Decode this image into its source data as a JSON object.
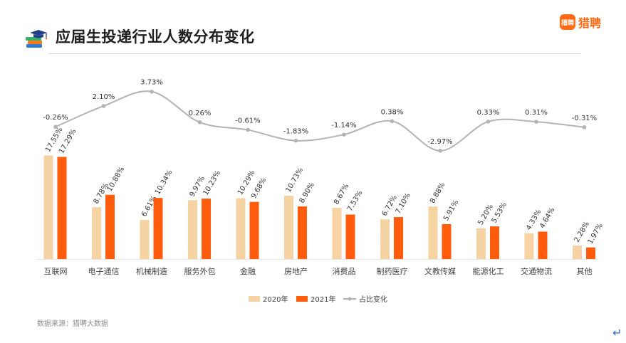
{
  "header": {
    "title": "应届生投递行业人数分布变化",
    "logo_mark": "猎聘",
    "logo_text": "猎聘",
    "icon": "graduation-cap-books-icon"
  },
  "footer": {
    "source": "数据来源：猎聘大数据",
    "return_icon": "↵"
  },
  "colors": {
    "series2020": "#f5d3a2",
    "series2021": "#ff5d0d",
    "line": "#b3b3b3",
    "brand": "#ff6a13"
  },
  "chart_data": {
    "type": "bar",
    "title": "应届生投递行业人数分布变化",
    "categories": [
      "互联网",
      "电子通信",
      "机械制造",
      "服务外包",
      "金融",
      "房地产",
      "消费品",
      "制药医疗",
      "文教传媒",
      "能源化工",
      "交通物流",
      "其他"
    ],
    "series": [
      {
        "name": "2020年",
        "values": [
          17.55,
          8.78,
          6.61,
          9.97,
          10.29,
          10.73,
          8.67,
          6.72,
          8.88,
          5.2,
          4.33,
          2.28
        ],
        "labels": [
          "17.55%",
          "8.78%",
          "6.61%",
          "9.97%",
          "10.29%",
          "10.73%",
          "8.67%",
          "6.72%",
          "8.88%",
          "5.20%",
          "4.33%",
          "2.28%"
        ]
      },
      {
        "name": "2021年",
        "values": [
          17.29,
          10.88,
          10.34,
          10.23,
          9.68,
          8.9,
          7.53,
          7.1,
          5.91,
          5.53,
          4.64,
          1.97
        ],
        "labels": [
          "17.29%",
          "10.88%",
          "10.34%",
          "10.23%",
          "9.68%",
          "8.90%",
          "7.53%",
          "7.10%",
          "5.91%",
          "5.53%",
          "4.64%",
          "1.97%"
        ]
      }
    ],
    "line_series": {
      "name": "占比变化",
      "values": [
        -0.26,
        2.1,
        3.73,
        0.26,
        -0.61,
        -1.83,
        -1.14,
        0.38,
        -2.97,
        0.33,
        0.31,
        -0.31
      ],
      "labels": [
        "-0.26%",
        "2.10%",
        "3.73%",
        "0.26%",
        "-0.61%",
        "-1.83%",
        "-1.14%",
        "0.38%",
        "-2.97%",
        "0.33%",
        "0.31%",
        "-0.31%"
      ]
    },
    "legend": [
      "2020年",
      "2021年",
      "占比变化"
    ],
    "legend_position": "bottom",
    "grid": false
  }
}
